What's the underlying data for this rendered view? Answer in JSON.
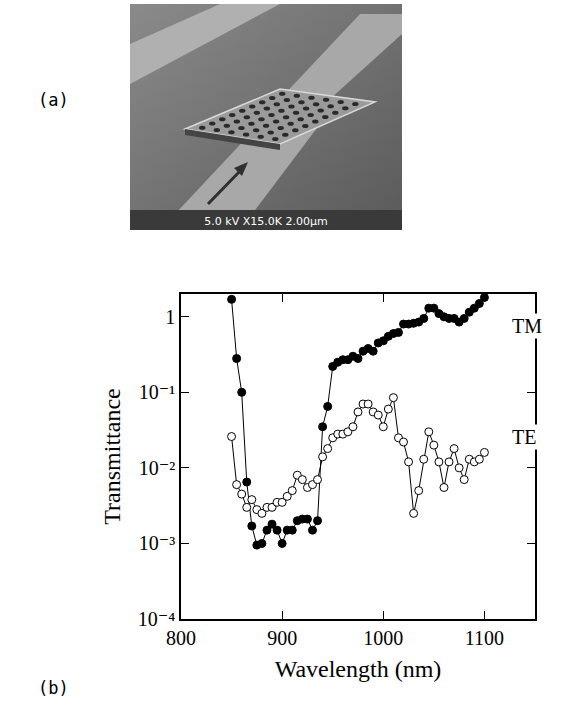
{
  "panel_a": {
    "label": "(a)",
    "micrograph_text": "5.0 kV X15.0K 2.00μm"
  },
  "panel_b_label": "(b)",
  "chart_data": {
    "type": "line",
    "x_title": "Wavelength (nm)",
    "y_title": "Transmittance",
    "log": "y",
    "grid": false,
    "xlim": [
      800,
      1150
    ],
    "xticks": [
      800,
      900,
      1000,
      1100
    ],
    "ylim": [
      0.0001,
      2
    ],
    "yticks": [
      {
        "value": 0.0001,
        "label": "10⁻⁴"
      },
      {
        "value": 0.001,
        "label": "10⁻³"
      },
      {
        "value": 0.01,
        "label": "10⁻²"
      },
      {
        "value": 0.1,
        "label": "10⁻¹"
      },
      1
    ],
    "x": [
      850,
      855,
      860,
      865,
      870,
      875,
      880,
      885,
      890,
      895,
      900,
      905,
      910,
      915,
      920,
      925,
      930,
      935,
      940,
      945,
      950,
      955,
      960,
      965,
      970,
      975,
      980,
      985,
      990,
      995,
      1000,
      1005,
      1010,
      1015,
      1020,
      1025,
      1030,
      1035,
      1040,
      1045,
      1050,
      1055,
      1060,
      1065,
      1070,
      1075,
      1080,
      1085,
      1090,
      1095,
      1100
    ],
    "series": [
      {
        "name": "TM",
        "color": "#000000",
        "marker": "filled",
        "line_style": "solid",
        "values": [
          1.7,
          0.28,
          0.1,
          0.0065,
          0.0017,
          0.00095,
          0.001,
          0.0015,
          0.0018,
          0.0015,
          0.001,
          0.0015,
          0.0015,
          0.002,
          0.0021,
          0.0021,
          0.0015,
          0.002,
          0.035,
          0.065,
          0.22,
          0.25,
          0.27,
          0.27,
          0.3,
          0.28,
          0.35,
          0.38,
          0.35,
          0.45,
          0.48,
          0.55,
          0.6,
          0.62,
          0.8,
          0.8,
          0.82,
          0.85,
          0.95,
          1.3,
          1.3,
          1.1,
          1.0,
          0.95,
          0.95,
          0.85,
          0.95,
          1.15,
          1.3,
          1.5,
          1.8
        ]
      },
      {
        "name": "TE",
        "color": "#000000",
        "marker": "open",
        "line_style": "solid",
        "values": [
          0.026,
          0.006,
          0.0045,
          0.003,
          0.0038,
          0.0028,
          0.0025,
          0.003,
          0.003,
          0.0035,
          0.0035,
          0.0042,
          0.005,
          0.008,
          0.007,
          0.0055,
          0.006,
          0.007,
          0.014,
          0.018,
          0.025,
          0.028,
          0.028,
          0.03,
          0.035,
          0.055,
          0.07,
          0.07,
          0.055,
          0.05,
          0.035,
          0.06,
          0.085,
          0.025,
          0.022,
          0.012,
          0.0025,
          0.005,
          0.013,
          0.03,
          0.02,
          0.012,
          0.0055,
          0.012,
          0.018,
          0.01,
          0.007,
          0.013,
          0.012,
          0.013,
          0.016
        ]
      }
    ],
    "annotations": [
      {
        "text": "TM",
        "x": 1125,
        "y": 0.75
      },
      {
        "text": "TE",
        "x": 1125,
        "y": 0.026
      }
    ]
  }
}
